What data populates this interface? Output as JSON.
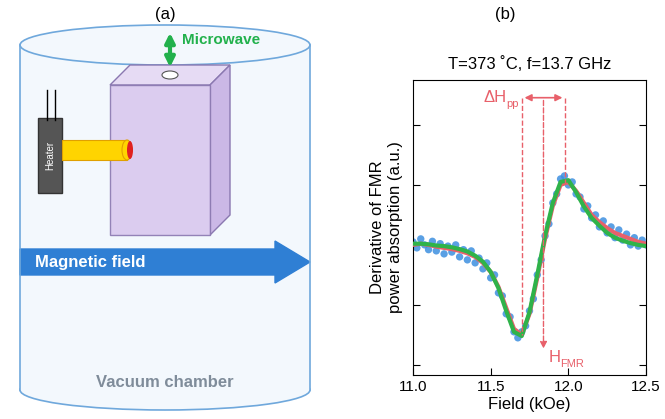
{
  "diagram": {
    "label": "(a)",
    "microwave": "Microwave",
    "heater": "Heater",
    "magnetic_field": "Magnetic field",
    "chamber": "Vacuum chamber"
  },
  "chart_data": {
    "type": "scatter",
    "panel_label": "(b)",
    "title": "T=373 ˚C, f=13.7 GHz",
    "x_label": "Field (kOe)",
    "y_label": "Derivative of FMR\npower absorption (a.u.)",
    "xlim": [
      11.0,
      12.5
    ],
    "xticks": [
      11.0,
      11.5,
      12.0,
      12.5
    ],
    "ylim": [
      -2.17,
      2.75
    ],
    "yticks": [
      -2,
      -1,
      0,
      1,
      2
    ],
    "tick_labels": "x",
    "grid": false,
    "annotations": [
      {
        "text": "ΔH",
        "subscript": "pp",
        "x_start": 11.7,
        "x_end": 11.98,
        "color": "#e8606a"
      },
      {
        "text": "H",
        "subscript": "FMR",
        "x": 11.84,
        "color": "#e8606a"
      }
    ],
    "series": [
      {
        "type": "scatter",
        "marker": "o",
        "color": "#3d8fe0",
        "x": [
          11.0,
          11.025,
          11.05,
          11.075,
          11.1,
          11.125,
          11.15,
          11.175,
          11.2,
          11.225,
          11.25,
          11.275,
          11.3,
          11.325,
          11.35,
          11.375,
          11.4,
          11.425,
          11.45,
          11.475,
          11.5,
          11.525,
          11.55,
          11.575,
          11.6,
          11.625,
          11.65,
          11.675,
          11.7,
          11.725,
          11.75,
          11.775,
          11.8,
          11.825,
          11.85,
          11.875,
          11.9,
          11.925,
          11.95,
          11.975,
          12.0,
          12.025,
          12.05,
          12.075,
          12.1,
          12.125,
          12.15,
          12.175,
          12.2,
          12.225,
          12.25,
          12.275,
          12.3,
          12.325,
          12.35,
          12.375,
          12.4,
          12.425,
          12.45,
          12.475,
          12.5
        ],
        "values": [
          0.05,
          -0.05,
          0.1,
          0.0,
          -0.08,
          0.06,
          -0.1,
          0.02,
          -0.15,
          -0.02,
          -0.12,
          0.0,
          -0.2,
          -0.08,
          -0.25,
          -0.1,
          -0.3,
          -0.22,
          -0.4,
          -0.3,
          -0.55,
          -0.5,
          -0.8,
          -0.85,
          -1.15,
          -1.2,
          -1.45,
          -1.55,
          -1.45,
          -1.35,
          -1.1,
          -0.9,
          -0.5,
          -0.25,
          0.15,
          0.35,
          0.7,
          0.85,
          1.1,
          1.15,
          1.0,
          1.05,
          0.85,
          0.8,
          0.6,
          0.65,
          0.45,
          0.5,
          0.3,
          0.4,
          0.2,
          0.3,
          0.12,
          0.25,
          0.08,
          0.18,
          0.0,
          0.12,
          -0.02,
          0.08,
          0.0
        ]
      },
      {
        "type": "line",
        "line_style": "solid",
        "color": "#e8606a",
        "x": [
          11.0,
          11.05,
          11.1,
          11.15,
          11.2,
          11.25,
          11.3,
          11.35,
          11.4,
          11.45,
          11.5,
          11.55,
          11.6,
          11.65,
          11.7,
          11.75,
          11.8,
          11.85,
          11.9,
          11.95,
          12.0,
          12.05,
          12.1,
          12.15,
          12.2,
          12.25,
          12.3,
          12.35,
          12.4,
          12.45,
          12.5
        ],
        "values": [
          0.0,
          0.02,
          0.0,
          -0.03,
          -0.05,
          -0.07,
          -0.1,
          -0.14,
          -0.2,
          -0.3,
          -0.45,
          -0.7,
          -1.05,
          -1.4,
          -1.5,
          -1.15,
          -0.55,
          0.1,
          0.65,
          1.0,
          1.05,
          0.9,
          0.7,
          0.5,
          0.38,
          0.28,
          0.2,
          0.15,
          0.1,
          0.05,
          0.02
        ]
      },
      {
        "type": "line",
        "line_style": "solid",
        "color": "#2fb34a",
        "x": [
          11.0,
          11.05,
          11.1,
          11.15,
          11.2,
          11.25,
          11.3,
          11.35,
          11.4,
          11.45,
          11.5,
          11.55,
          11.6,
          11.65,
          11.7,
          11.75,
          11.8,
          11.85,
          11.9,
          11.95,
          12.0,
          12.05,
          12.1,
          12.15,
          12.2,
          12.25,
          12.3,
          12.35,
          12.4,
          12.45,
          12.5
        ],
        "values": [
          0.02,
          0.02,
          0.01,
          -0.01,
          -0.02,
          -0.04,
          -0.07,
          -0.11,
          -0.18,
          -0.28,
          -0.45,
          -0.72,
          -1.1,
          -1.45,
          -1.52,
          -1.12,
          -0.5,
          0.15,
          0.7,
          1.05,
          1.08,
          0.88,
          0.64,
          0.45,
          0.32,
          0.2,
          0.12,
          0.07,
          0.03,
          0.0,
          -0.02
        ]
      }
    ]
  }
}
